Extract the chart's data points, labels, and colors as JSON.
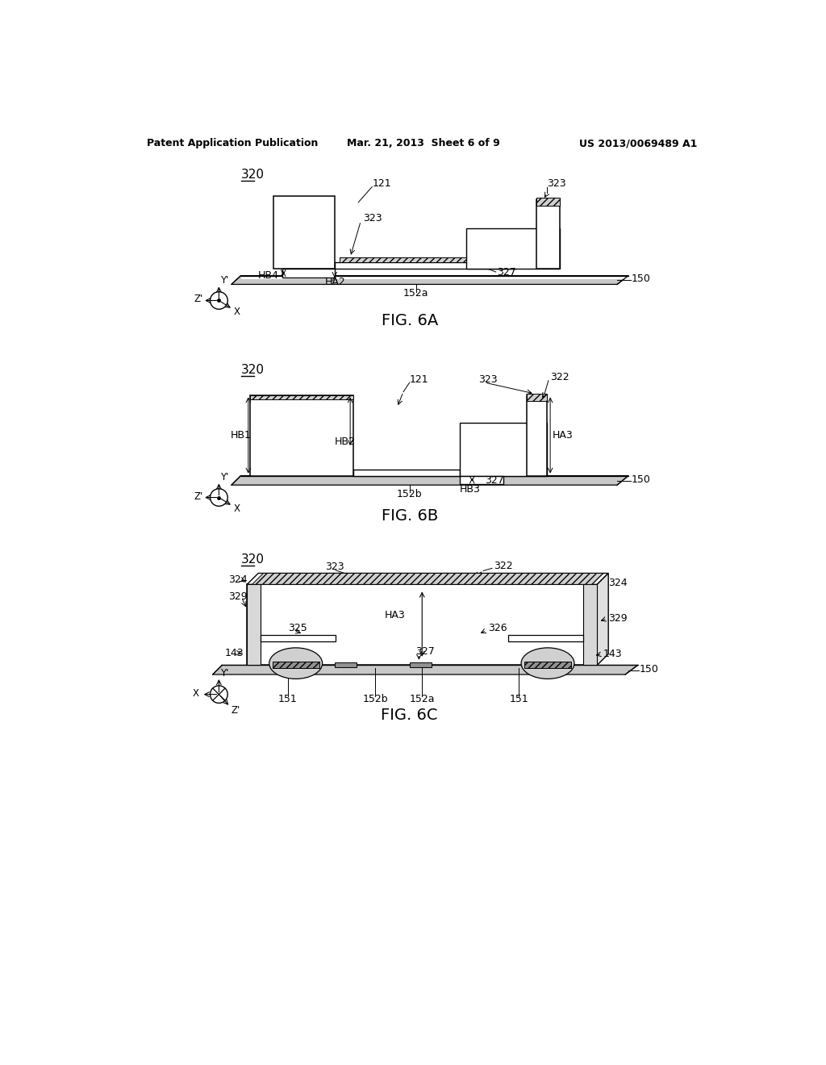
{
  "bg_color": "#ffffff",
  "header_left": "Patent Application Publication",
  "header_center": "Mar. 21, 2013  Sheet 6 of 9",
  "header_right": "US 2013/0069489 A1",
  "gray_beam": "#c8c8c8",
  "gray_hatch_fill": "#d0d0d0",
  "dark_gray": "#888888",
  "black": "#000000",
  "white": "#ffffff"
}
